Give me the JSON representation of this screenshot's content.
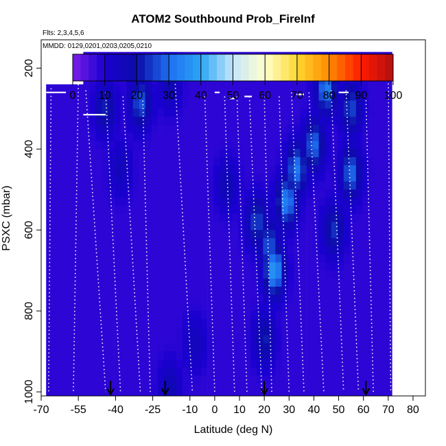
{
  "chart_data": {
    "type": "heatmap",
    "title": "ATOM2 Southbound Prob_FireInf",
    "subtitle_flights": "Flts: 2,3,4,5,6",
    "subtitle_dates": "MMDD: 0129,0201,0203,0205,0210",
    "xlabel": "Latitude (deg N)",
    "ylabel": "PSXC (mbar)",
    "xlim": [
      -70,
      85
    ],
    "ylim": [
      1010,
      130
    ],
    "x_ticks": [
      -70,
      -55,
      -40,
      -25,
      -10,
      0,
      10,
      20,
      30,
      40,
      50,
      60,
      70,
      80
    ],
    "x_tick_labels": [
      "-70",
      "-55",
      "-40",
      "-25",
      "-10",
      "0",
      "10",
      "20",
      "30",
      "40",
      "50",
      "60",
      "70",
      "80"
    ],
    "y_ticks": [
      200,
      400,
      600,
      800,
      1000
    ],
    "y_tick_labels": [
      "200",
      "400",
      "600",
      "800",
      "1000"
    ],
    "colorbar": {
      "ticks": [
        0,
        10,
        20,
        30,
        40,
        50,
        60,
        70,
        80,
        90,
        100
      ],
      "tick_labels": [
        "0",
        "10",
        "20",
        "30",
        "40",
        "50",
        "60",
        "70",
        "80",
        "90",
        "100"
      ],
      "colors": [
        "#7a1fe8",
        "#1a00d0",
        "#0c0ca8",
        "#1e6ef0",
        "#2aa6f5",
        "#c6e6fb",
        "#ffffcc",
        "#ffd830",
        "#ff8a00",
        "#ff1a00",
        "#b01010"
      ]
    },
    "background_value": 8,
    "hotspots": [
      {
        "lat": -44,
        "p": 300,
        "value": 22
      },
      {
        "lat": -38,
        "p": 450,
        "value": 16
      },
      {
        "lat": -30,
        "p": 285,
        "value": 28
      },
      {
        "lat": -18,
        "p": 240,
        "value": 18
      },
      {
        "lat": -18,
        "p": 990,
        "value": 18
      },
      {
        "lat": -8,
        "p": 880,
        "value": 16
      },
      {
        "lat": 5,
        "p": 490,
        "value": 18
      },
      {
        "lat": 17,
        "p": 580,
        "value": 26
      },
      {
        "lat": 20,
        "p": 870,
        "value": 22
      },
      {
        "lat": 22,
        "p": 640,
        "value": 28
      },
      {
        "lat": 24,
        "p": 700,
        "value": 38
      },
      {
        "lat": 29,
        "p": 530,
        "value": 34
      },
      {
        "lat": 33,
        "p": 450,
        "value": 32
      },
      {
        "lat": 40,
        "p": 390,
        "value": 30
      },
      {
        "lat": 45,
        "p": 250,
        "value": 33
      },
      {
        "lat": 48,
        "p": 600,
        "value": 24
      },
      {
        "lat": 55,
        "p": 300,
        "value": 26
      },
      {
        "lat": 55,
        "p": 460,
        "value": 30
      }
    ],
    "flight_start_arrows_lat": [
      -42,
      -20,
      20,
      61
    ],
    "tropopause_segments": [
      {
        "lat": [
          -68,
          -60
        ],
        "p": 260
      },
      {
        "lat": [
          -53,
          -44
        ],
        "p": 315
      },
      {
        "lat": [
          -55,
          -47
        ],
        "p": 200
      },
      {
        "lat": [
          -14,
          -11
        ],
        "p": 225
      },
      {
        "lat": [
          0,
          2
        ],
        "p": 260
      },
      {
        "lat": [
          6,
          8
        ],
        "p": 275
      },
      {
        "lat": [
          12,
          15
        ],
        "p": 270
      },
      {
        "lat": [
          33,
          36
        ],
        "p": 265
      },
      {
        "lat": [
          50,
          54
        ],
        "p": 260
      },
      {
        "lat": [
          65,
          70
        ],
        "p": 200
      }
    ],
    "profiles": [
      {
        "lat_top": -66,
        "lat_bottom": -67,
        "p_top": 250
      },
      {
        "lat_top": -55,
        "lat_bottom": -57,
        "p_top": 240
      },
      {
        "lat_top": -52,
        "lat_bottom": -44,
        "p_top": 255
      },
      {
        "lat_top": -44,
        "lat_bottom": -38,
        "p_top": 260
      },
      {
        "lat_top": -37,
        "lat_bottom": -30,
        "p_top": 270
      },
      {
        "lat_top": -29,
        "lat_bottom": -26,
        "p_top": 280
      },
      {
        "lat_top": -16,
        "lat_bottom": -9,
        "p_top": 230
      },
      {
        "lat_top": -4,
        "lat_bottom": 0,
        "p_top": 270
      },
      {
        "lat_top": 4,
        "lat_bottom": 8,
        "p_top": 270
      },
      {
        "lat_top": 9,
        "lat_bottom": 13,
        "p_top": 270
      },
      {
        "lat_top": 14,
        "lat_bottom": 19,
        "p_top": 270
      },
      {
        "lat_top": 20,
        "lat_bottom": 23,
        "p_top": 270
      },
      {
        "lat_top": 26,
        "lat_bottom": 30,
        "p_top": 270
      },
      {
        "lat_top": 31,
        "lat_bottom": 36,
        "p_top": 260
      },
      {
        "lat_top": 38,
        "lat_bottom": 44,
        "p_top": 260
      },
      {
        "lat_top": 47,
        "lat_bottom": 52,
        "p_top": 255
      },
      {
        "lat_top": 53,
        "lat_bottom": 58,
        "p_top": 255
      },
      {
        "lat_top": 61,
        "lat_bottom": 64,
        "p_top": 270
      },
      {
        "lat_top": 70,
        "lat_bottom": 71,
        "p_top": 210
      }
    ]
  }
}
